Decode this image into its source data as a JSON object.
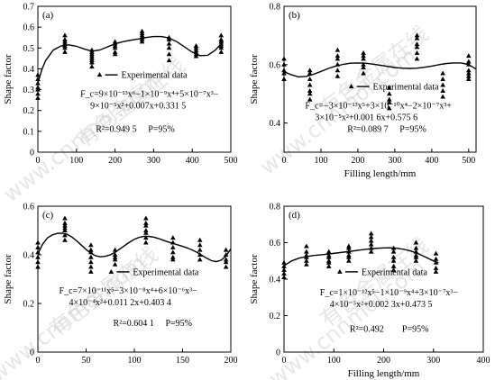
{
  "watermark": [
    "有色金属在线",
    "www.cnnmol.com",
    "有色金属在线",
    "www.cnnmol.com",
    "有色金属在线",
    "www.cnnmol.com",
    "有色金属在线",
    "www.cnnmol.com"
  ],
  "chart_data": [
    {
      "type": "scatter",
      "panel_label": "(a)",
      "xlabel": "",
      "ylabel": "Shape factor",
      "xlim": [
        0,
        500
      ],
      "ylim": [
        0,
        0.7
      ],
      "xticks": [
        "0",
        "100",
        "200",
        "300",
        "400",
        "500"
      ],
      "yticks": [
        "0",
        "0.1",
        "0.2",
        "0.3",
        "0.4",
        "0.5",
        "0.6",
        "0.7"
      ],
      "legend_label": "Experimental data",
      "legend_position": "center",
      "equation": [
        "F_c=9×10⁻¹³x⁶−1×10⁻⁹x⁴+5×10⁻⁷x³−",
        "9×10⁻⁵x²+0.007x+0.331 5"
      ],
      "stats": [
        "R²=0.949 5",
        "P=95%"
      ],
      "series": [
        {
          "x": [
            0,
            0,
            0,
            0,
            0,
            0,
            0,
            70,
            70,
            70,
            70,
            70,
            70,
            70,
            140,
            140,
            140,
            140,
            140,
            140,
            140,
            140,
            200,
            200,
            200,
            200,
            200,
            200,
            270,
            270,
            270,
            270,
            270,
            270,
            340,
            340,
            340,
            340,
            340,
            340,
            410,
            410,
            410,
            410,
            410,
            410,
            475,
            475,
            475,
            475,
            475,
            475,
            475
          ],
          "y": [
            0.26,
            0.28,
            0.3,
            0.31,
            0.33,
            0.35,
            0.37,
            0.48,
            0.5,
            0.51,
            0.52,
            0.53,
            0.54,
            0.56,
            0.41,
            0.43,
            0.44,
            0.45,
            0.46,
            0.47,
            0.48,
            0.49,
            0.47,
            0.48,
            0.5,
            0.51,
            0.52,
            0.53,
            0.53,
            0.54,
            0.55,
            0.56,
            0.57,
            0.58,
            0.44,
            0.47,
            0.5,
            0.52,
            0.54,
            0.55,
            0.46,
            0.47,
            0.48,
            0.49,
            0.5,
            0.51,
            0.48,
            0.5,
            0.51,
            0.52,
            0.53,
            0.54,
            0.56
          ]
        }
      ],
      "fit_curve": {
        "x": [
          0,
          10,
          20,
          40,
          60,
          80,
          100,
          120,
          140,
          160,
          180,
          200,
          220,
          240,
          260,
          280,
          300,
          320,
          340,
          360,
          380,
          400,
          420,
          440,
          460,
          480
        ],
        "y": [
          0.3315,
          0.395,
          0.44,
          0.49,
          0.51,
          0.515,
          0.508,
          0.495,
          0.485,
          0.49,
          0.505,
          0.52,
          0.53,
          0.537,
          0.543,
          0.55,
          0.555,
          0.555,
          0.548,
          0.53,
          0.505,
          0.48,
          0.463,
          0.465,
          0.49,
          0.53
        ]
      }
    },
    {
      "type": "scatter",
      "panel_label": "(b)",
      "xlabel": "Filling length/mm",
      "ylabel": "Shape factor",
      "xlim": [
        0,
        520
      ],
      "ylim": [
        0.3,
        0.8
      ],
      "xticks": [
        "0",
        "100",
        "200",
        "300",
        "400",
        "500"
      ],
      "yticks": [
        "0.4",
        "0.6",
        "0.8"
      ],
      "legend_label": "Experimental data",
      "legend_position": "center",
      "equation": [
        "F_c=−3×10⁻¹³x⁵+3×10⁻¹⁰x⁴−2×10⁻⁷x³+",
        "3×10⁻⁵x²+0.001 6x+0.575 6"
      ],
      "stats": [
        "R²=0.089 7",
        "P=95%"
      ],
      "series": [
        {
          "x": [
            0,
            0,
            0,
            0,
            0,
            70,
            70,
            70,
            70,
            70,
            70,
            70,
            145,
            145,
            145,
            145,
            145,
            145,
            215,
            215,
            215,
            215,
            215,
            215,
            285,
            285,
            285,
            285,
            285,
            360,
            360,
            360,
            360,
            360,
            360,
            430,
            430,
            430,
            430,
            430,
            500,
            500,
            500,
            500,
            500,
            500,
            500
          ],
          "y": [
            0.55,
            0.57,
            0.58,
            0.6,
            0.62,
            0.48,
            0.5,
            0.51,
            0.53,
            0.55,
            0.57,
            0.58,
            0.56,
            0.58,
            0.6,
            0.62,
            0.63,
            0.65,
            0.57,
            0.59,
            0.6,
            0.62,
            0.63,
            0.64,
            0.45,
            0.47,
            0.48,
            0.5,
            0.52,
            0.62,
            0.64,
            0.66,
            0.67,
            0.69,
            0.7,
            0.49,
            0.51,
            0.53,
            0.55,
            0.57,
            0.55,
            0.56,
            0.57,
            0.58,
            0.6,
            0.61,
            0.63
          ]
        }
      ],
      "fit_curve": {
        "x": [
          0,
          20,
          40,
          60,
          80,
          100,
          120,
          140,
          160,
          180,
          200,
          220,
          240,
          260,
          280,
          300,
          320,
          340,
          360,
          380,
          400,
          420,
          440,
          460,
          480,
          500,
          520
        ],
        "y": [
          0.5756,
          0.565,
          0.558,
          0.56,
          0.567,
          0.577,
          0.587,
          0.595,
          0.601,
          0.605,
          0.606,
          0.605,
          0.602,
          0.598,
          0.594,
          0.59,
          0.588,
          0.587,
          0.588,
          0.591,
          0.595,
          0.6,
          0.604,
          0.606,
          0.606,
          0.6,
          0.585
        ]
      }
    },
    {
      "type": "scatter",
      "panel_label": "(c)",
      "xlabel": "",
      "ylabel": "Shape factor",
      "xlim": [
        0,
        200
      ],
      "ylim": [
        0,
        0.6
      ],
      "xticks": [
        "0",
        "50",
        "100",
        "150",
        "200"
      ],
      "yticks": [
        "0",
        "0.2",
        "0.4",
        "0.6"
      ],
      "legend_label": "Experimental data",
      "legend_position": "center",
      "equation": [
        "F_c=7×10⁻¹¹x⁵−3×10⁻⁸x⁴+6×10⁻⁶x³−",
        "4×10⁻⁴x²+0.011 2x+0.403 4"
      ],
      "stats": [
        "R²=0.604 1",
        "P=95%"
      ],
      "series": [
        {
          "x": [
            0,
            0,
            0,
            0,
            0,
            0,
            28,
            28,
            28,
            28,
            28,
            28,
            28,
            55,
            55,
            55,
            55,
            55,
            55,
            55,
            80,
            80,
            80,
            80,
            80,
            112,
            112,
            112,
            112,
            112,
            112,
            112,
            140,
            140,
            140,
            140,
            140,
            140,
            168,
            168,
            168,
            168,
            168,
            195,
            195,
            195,
            195,
            195
          ],
          "y": [
            0.35,
            0.37,
            0.39,
            0.41,
            0.43,
            0.45,
            0.46,
            0.48,
            0.5,
            0.51,
            0.52,
            0.53,
            0.55,
            0.33,
            0.35,
            0.37,
            0.39,
            0.41,
            0.42,
            0.44,
            0.36,
            0.38,
            0.39,
            0.4,
            0.42,
            0.45,
            0.47,
            0.49,
            0.5,
            0.52,
            0.53,
            0.55,
            0.38,
            0.39,
            0.41,
            0.43,
            0.45,
            0.47,
            0.38,
            0.4,
            0.42,
            0.44,
            0.46,
            0.35,
            0.37,
            0.38,
            0.4,
            0.42
          ]
        }
      ],
      "fit_curve": {
        "x": [
          0,
          5,
          10,
          15,
          20,
          25,
          30,
          35,
          40,
          45,
          50,
          55,
          60,
          65,
          70,
          75,
          80,
          85,
          90,
          95,
          100,
          105,
          110,
          115,
          120,
          125,
          130,
          135,
          140,
          145,
          150,
          155,
          160,
          165,
          170,
          175,
          180,
          185,
          190,
          195,
          200
        ],
        "y": [
          0.4034,
          0.445,
          0.47,
          0.482,
          0.488,
          0.489,
          0.485,
          0.474,
          0.458,
          0.44,
          0.422,
          0.406,
          0.396,
          0.392,
          0.394,
          0.4,
          0.41,
          0.424,
          0.438,
          0.452,
          0.464,
          0.472,
          0.476,
          0.476,
          0.473,
          0.467,
          0.46,
          0.453,
          0.447,
          0.441,
          0.435,
          0.428,
          0.42,
          0.41,
          0.398,
          0.386,
          0.376,
          0.372,
          0.378,
          0.395,
          0.425
        ]
      }
    },
    {
      "type": "scatter",
      "panel_label": "(d)",
      "xlabel": "Filling length/mm",
      "ylabel": "Shape factor",
      "xlim": [
        0,
        400
      ],
      "ylim": [
        0,
        0.8
      ],
      "xticks": [
        "0",
        "100",
        "200",
        "300",
        "400"
      ],
      "yticks": [
        "0",
        "0.2",
        "0.4",
        "0.6",
        "0.8"
      ],
      "legend_label": "Experimental data",
      "legend_position": "center",
      "equation": [
        "F_c=1×10⁻¹²x⁵−1×10⁻⁹x⁴+3×10⁻⁷x³−",
        "4×10⁻⁵x²+0.002 3x+0.473 5"
      ],
      "stats": [
        "R²=0.492",
        "P=95%"
      ],
      "series": [
        {
          "x": [
            0,
            0,
            0,
            0,
            0,
            45,
            45,
            45,
            45,
            45,
            45,
            90,
            90,
            90,
            90,
            90,
            90,
            130,
            130,
            130,
            130,
            130,
            130,
            175,
            175,
            175,
            175,
            175,
            175,
            220,
            220,
            220,
            220,
            220,
            220,
            265,
            265,
            265,
            265,
            265,
            265,
            305,
            305,
            305,
            305,
            305
          ],
          "y": [
            0.41,
            0.43,
            0.45,
            0.47,
            0.49,
            0.48,
            0.5,
            0.52,
            0.53,
            0.55,
            0.58,
            0.47,
            0.49,
            0.5,
            0.52,
            0.53,
            0.55,
            0.5,
            0.52,
            0.53,
            0.55,
            0.57,
            0.58,
            0.55,
            0.57,
            0.59,
            0.61,
            0.63,
            0.65,
            0.45,
            0.47,
            0.5,
            0.52,
            0.55,
            0.57,
            0.5,
            0.52,
            0.53,
            0.55,
            0.57,
            0.6,
            0.44,
            0.46,
            0.49,
            0.51,
            0.54
          ]
        }
      ],
      "fit_curve": {
        "x": [
          0,
          15,
          30,
          45,
          60,
          75,
          90,
          105,
          120,
          135,
          150,
          165,
          180,
          195,
          210,
          225,
          240,
          255,
          270,
          285,
          300,
          310
        ],
        "y": [
          0.4735,
          0.5,
          0.515,
          0.524,
          0.53,
          0.534,
          0.538,
          0.543,
          0.548,
          0.553,
          0.559,
          0.564,
          0.568,
          0.571,
          0.572,
          0.57,
          0.564,
          0.554,
          0.539,
          0.52,
          0.5,
          0.49
        ]
      }
    }
  ]
}
